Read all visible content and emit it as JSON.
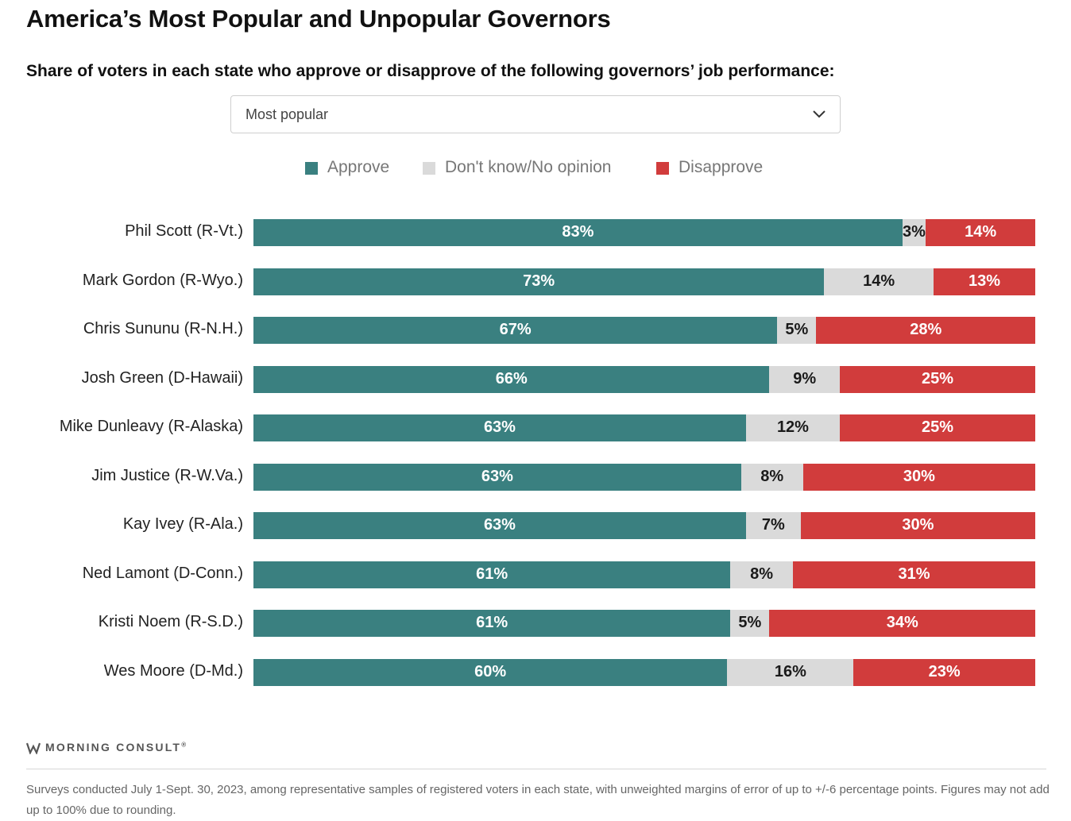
{
  "header": {
    "title": "America’s Most Popular and Unpopular Governors",
    "subtitle": "Share of voters in each state who approve or disapprove of the following governors’ job performance:"
  },
  "dropdown": {
    "selected": "Most popular",
    "icon": "chevron-down-icon"
  },
  "legend": [
    {
      "label": "Approve",
      "color": "#3a8080"
    },
    {
      "label": "Don't know/No opinion",
      "color": "#dadada"
    },
    {
      "label": "Disapprove",
      "color": "#d13c3c"
    }
  ],
  "chart_data": {
    "type": "bar",
    "orientation": "horizontal",
    "stacked": true,
    "categories": [
      "Phil Scott (R-Vt.)",
      "Mark Gordon (R-Wyo.)",
      "Chris Sununu (R-N.H.)",
      "Josh Green (D-Hawaii)",
      "Mike Dunleavy (R-Alaska)",
      "Jim Justice (R-W.Va.)",
      "Kay Ivey (R-Ala.)",
      "Ned Lamont (D-Conn.)",
      "Kristi Noem (R-S.D.)",
      "Wes Moore (D-Md.)"
    ],
    "series": [
      {
        "name": "Approve",
        "color": "#3a8080",
        "values": [
          83,
          73,
          67,
          66,
          63,
          63,
          63,
          61,
          61,
          60
        ],
        "labels": [
          "83%",
          "73%",
          "67%",
          "66%",
          "63%",
          "63%",
          "63%",
          "61%",
          "61%",
          "60%"
        ]
      },
      {
        "name": "Don't know/No opinion",
        "color": "#dadada",
        "values": [
          3,
          14,
          5,
          9,
          12,
          8,
          7,
          8,
          5,
          16
        ],
        "labels": [
          "3%",
          "14%",
          "5%",
          "9%",
          "12%",
          "8%",
          "7%",
          "8%",
          "5%",
          "16%"
        ]
      },
      {
        "name": "Disapprove",
        "color": "#d13c3c",
        "values": [
          14,
          13,
          28,
          25,
          25,
          30,
          30,
          31,
          34,
          23
        ],
        "labels": [
          "14%",
          "13%",
          "28%",
          "25%",
          "25%",
          "30%",
          "30%",
          "31%",
          "34%",
          "23%"
        ]
      }
    ],
    "xlim": [
      0,
      100
    ],
    "grid": false,
    "legend_position": "top-center"
  },
  "footer": {
    "logo_text": "MORNING CONSULT",
    "logo_mark": "®",
    "note": "Surveys conducted July 1-Sept. 30, 2023, among representative samples of registered voters in each state, with unweighted margins of error of up to +/-6 percentage points. Figures may not add up to 100% due to rounding."
  }
}
